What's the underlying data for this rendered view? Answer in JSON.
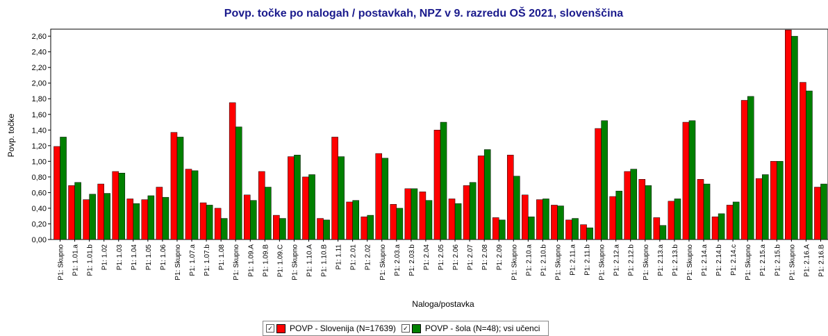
{
  "chart_data": {
    "type": "bar",
    "title": "Povp. točke po nalogah / postavkah, NPZ v 9. razredu OŠ 2021, slovenščina",
    "xlabel": "Naloga/postavka",
    "ylabel": "Povp. točke",
    "categories": [
      "P1: Skupno",
      "P1: 1.01.a",
      "P1: 1.01.b",
      "P1: 1.02",
      "P1: 1.03",
      "P1: 1.04",
      "P1: 1.05",
      "P1: 1.06",
      "P1: Skupno",
      "P1: 1.07.a",
      "P1: 1.07.b",
      "P1: 1.08",
      "P1: Skupno",
      "P1: 1.09.A",
      "P1: 1.09.B",
      "P1: 1.09.C",
      "P1: Skupno",
      "P1: 1.10.A",
      "P1: 1.10.B",
      "P1: 1.11",
      "P1: 2.01",
      "P1: 2.02",
      "P1: Skupno",
      "P1: 2.03.a",
      "P1: 2.03.b",
      "P1: 2.04",
      "P1: 2.05",
      "P1: 2.06",
      "P1: 2.07",
      "P1: 2.08",
      "P1: 2.09",
      "P1: Skupno",
      "P1: 2.10.a",
      "P1: 2.10.b",
      "P1: Skupno",
      "P1: 2.11.a",
      "P1: 2.11.b",
      "P1: Skupno",
      "P1: 2.12.a",
      "P1: 2.12.b",
      "P1: Skupno",
      "P1: 2.13.a",
      "P1: 2.13.b",
      "P1: Skupno",
      "P1: 2.14.a",
      "P1: 2.14.b",
      "P1: 2.14.c",
      "P1: Skupno",
      "P1: 2.15.a",
      "P1: 2.15.b",
      "P1: Skupno",
      "P1: 2.16.A",
      "P1: 2.16.B"
    ],
    "series": [
      {
        "name": "POVP - Slovenija (N=17639)",
        "color": "#ff0000",
        "values": [
          1.19,
          0.69,
          0.51,
          0.71,
          0.87,
          0.52,
          0.51,
          0.67,
          1.37,
          0.9,
          0.47,
          0.4,
          1.75,
          0.57,
          0.87,
          0.31,
          1.06,
          0.8,
          0.27,
          1.31,
          0.48,
          0.29,
          1.1,
          0.45,
          0.65,
          0.61,
          1.4,
          0.52,
          0.69,
          1.07,
          0.28,
          1.08,
          0.57,
          0.51,
          0.44,
          0.25,
          0.19,
          1.42,
          0.55,
          0.87,
          0.77,
          0.28,
          0.49,
          1.5,
          0.77,
          0.29,
          0.44,
          1.78,
          0.78,
          1.0,
          2.68,
          2.01,
          0.67
        ]
      },
      {
        "name": "POVP - šola (N=48); vsi učenci",
        "color": "#008000",
        "values": [
          1.31,
          0.73,
          0.58,
          0.59,
          0.85,
          0.46,
          0.56,
          0.54,
          1.31,
          0.88,
          0.44,
          0.27,
          1.44,
          0.5,
          0.67,
          0.27,
          1.08,
          0.83,
          0.25,
          1.06,
          0.5,
          0.31,
          1.04,
          0.4,
          0.65,
          0.5,
          1.5,
          0.46,
          0.73,
          1.15,
          0.25,
          0.81,
          0.29,
          0.52,
          0.43,
          0.27,
          0.15,
          1.52,
          0.62,
          0.9,
          0.69,
          0.18,
          0.52,
          1.52,
          0.71,
          0.33,
          0.48,
          1.83,
          0.83,
          1.0,
          2.6,
          1.9,
          0.71
        ]
      }
    ],
    "ylim": [
      0,
      2.69
    ],
    "yticks": [
      {
        "value": 0,
        "label": "0,00"
      },
      {
        "value": 0.2,
        "label": "0,20"
      },
      {
        "value": 0.4,
        "label": "0,40"
      },
      {
        "value": 0.6,
        "label": "0,60"
      },
      {
        "value": 0.8,
        "label": "0,80"
      },
      {
        "value": 1.0,
        "label": "1,00"
      },
      {
        "value": 1.2,
        "label": "1,20"
      },
      {
        "value": 1.4,
        "label": "1,40"
      },
      {
        "value": 1.6,
        "label": "1,60"
      },
      {
        "value": 1.8,
        "label": "1,80"
      },
      {
        "value": 2.0,
        "label": "2,00"
      },
      {
        "value": 2.2,
        "label": "2,20"
      },
      {
        "value": 2.4,
        "label": "2,40"
      },
      {
        "value": 2.6,
        "label": "2,60"
      }
    ],
    "grid": false
  }
}
